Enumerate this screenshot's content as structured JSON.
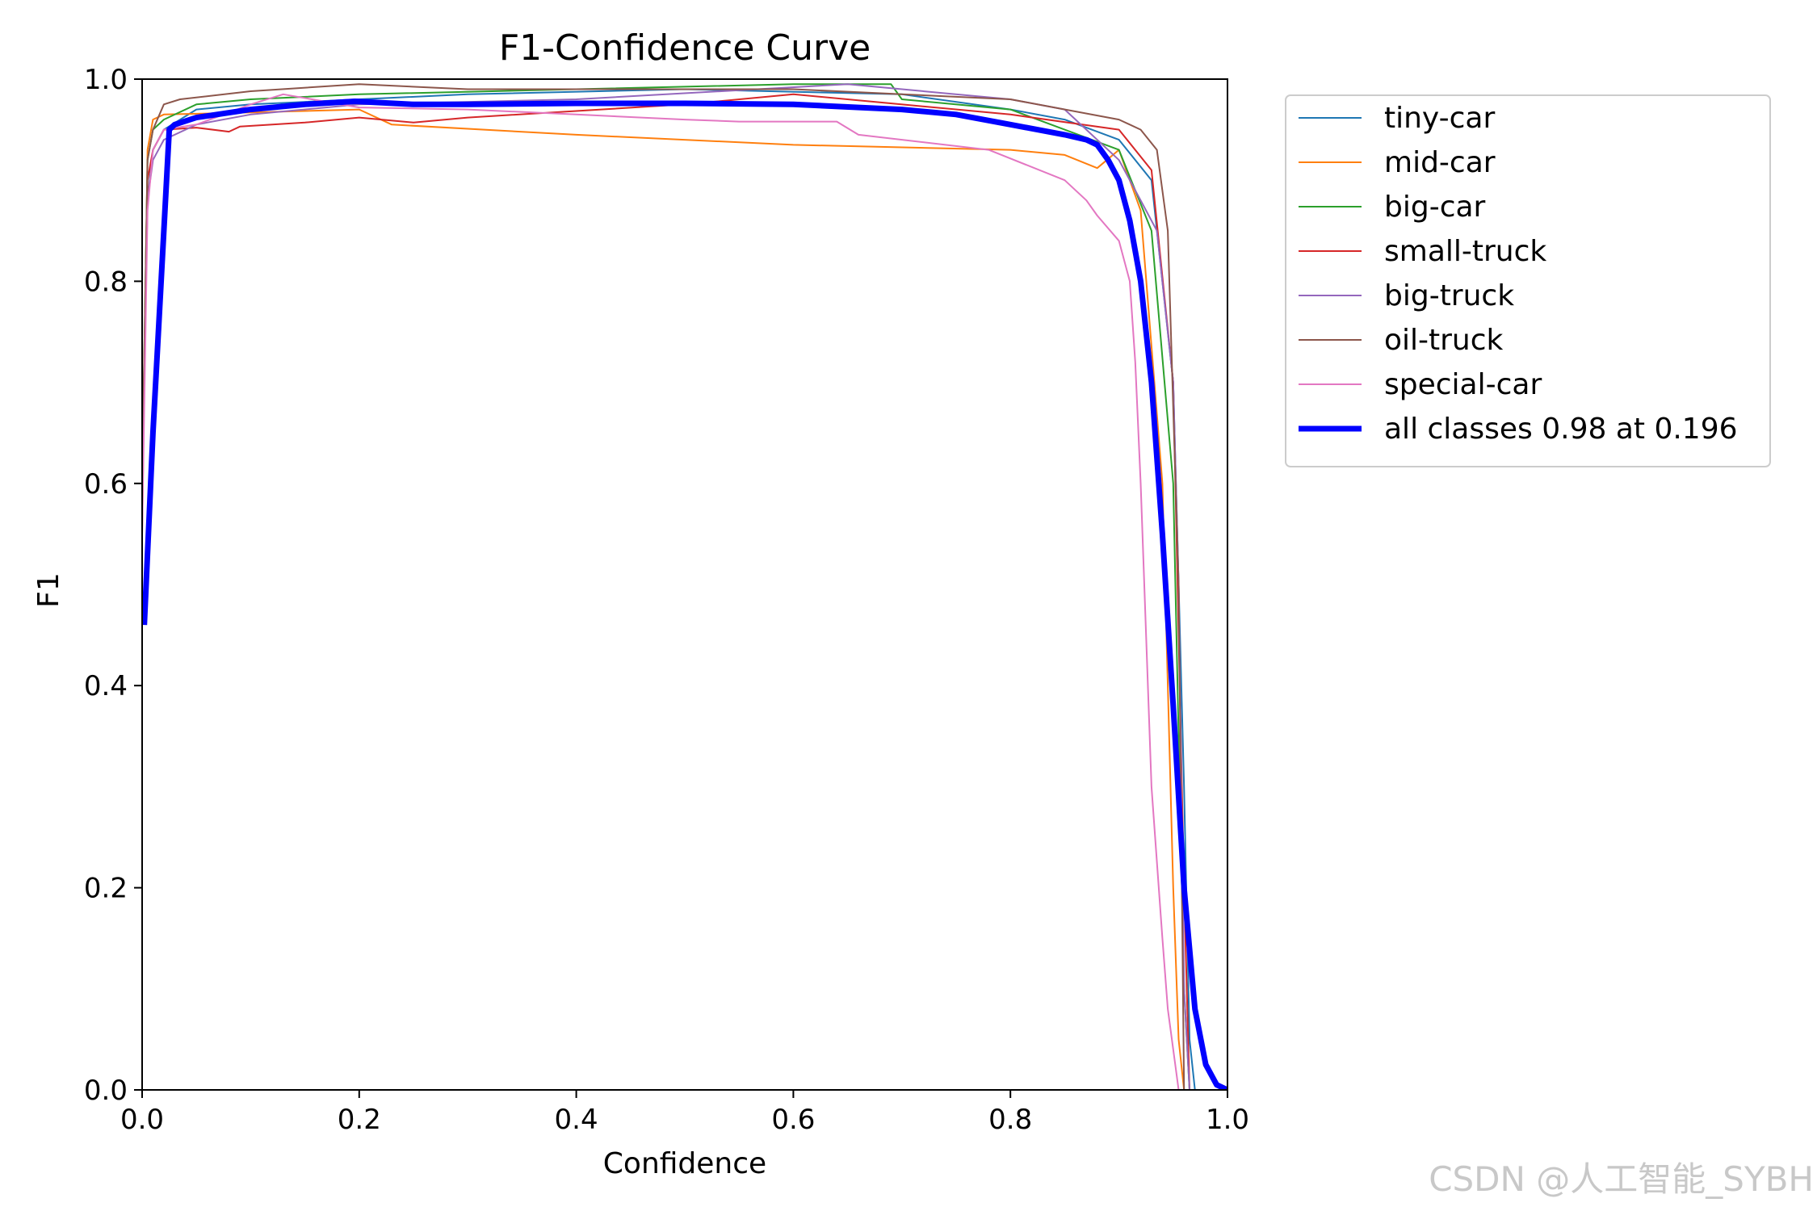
{
  "chart_data": {
    "type": "line",
    "title": "F1-Confidence Curve",
    "xlabel": "Confidence",
    "ylabel": "F1",
    "xlim": [
      0,
      1
    ],
    "ylim": [
      0,
      1
    ],
    "xticks": [
      "0.0",
      "0.2",
      "0.4",
      "0.6",
      "0.8",
      "1.0"
    ],
    "yticks": [
      "0.0",
      "0.2",
      "0.4",
      "0.6",
      "0.8",
      "1.0"
    ],
    "grid": false,
    "legend_position": "outside-top-right",
    "series": [
      {
        "name": "tiny-car",
        "color": "#1f77b4",
        "width": 2,
        "x": [
          0,
          0.005,
          0.01,
          0.02,
          0.05,
          0.1,
          0.2,
          0.3,
          0.5,
          0.7,
          0.8,
          0.85,
          0.9,
          0.93,
          0.95,
          0.96,
          0.965,
          0.97
        ],
        "y": [
          0.6,
          0.88,
          0.93,
          0.95,
          0.97,
          0.975,
          0.98,
          0.985,
          0.99,
          0.985,
          0.97,
          0.96,
          0.94,
          0.9,
          0.7,
          0.3,
          0.05,
          0
        ]
      },
      {
        "name": "mid-car",
        "color": "#ff7f0e",
        "width": 2,
        "x": [
          0,
          0.005,
          0.01,
          0.02,
          0.1,
          0.2,
          0.23,
          0.4,
          0.6,
          0.8,
          0.85,
          0.88,
          0.9,
          0.92,
          0.94,
          0.95,
          0.955,
          0.96
        ],
        "y": [
          0.55,
          0.93,
          0.96,
          0.965,
          0.967,
          0.97,
          0.955,
          0.945,
          0.935,
          0.93,
          0.925,
          0.912,
          0.93,
          0.87,
          0.6,
          0.2,
          0.05,
          0
        ]
      },
      {
        "name": "big-car",
        "color": "#2ca02c",
        "width": 2,
        "x": [
          0,
          0.005,
          0.01,
          0.02,
          0.05,
          0.1,
          0.2,
          0.4,
          0.6,
          0.69,
          0.7,
          0.8,
          0.9,
          0.93,
          0.95,
          0.96,
          0.965
        ],
        "y": [
          0.6,
          0.92,
          0.95,
          0.96,
          0.975,
          0.98,
          0.985,
          0.99,
          0.995,
          0.995,
          0.98,
          0.97,
          0.93,
          0.85,
          0.6,
          0.1,
          0
        ]
      },
      {
        "name": "small-truck",
        "color": "#d62728",
        "width": 2,
        "x": [
          0,
          0.005,
          0.01,
          0.02,
          0.05,
          0.08,
          0.09,
          0.15,
          0.2,
          0.25,
          0.3,
          0.5,
          0.6,
          0.8,
          0.9,
          0.93,
          0.95,
          0.96,
          0.965
        ],
        "y": [
          0.6,
          0.9,
          0.93,
          0.95,
          0.952,
          0.948,
          0.953,
          0.957,
          0.962,
          0.957,
          0.962,
          0.975,
          0.985,
          0.965,
          0.95,
          0.91,
          0.7,
          0.2,
          0
        ]
      },
      {
        "name": "big-truck",
        "color": "#9467bd",
        "width": 2,
        "x": [
          0,
          0.005,
          0.01,
          0.02,
          0.05,
          0.1,
          0.2,
          0.4,
          0.65,
          0.8,
          0.85,
          0.9,
          0.92,
          0.935,
          0.945,
          0.95,
          0.955,
          0.96,
          0.965
        ],
        "y": [
          0.6,
          0.88,
          0.92,
          0.94,
          0.955,
          0.965,
          0.975,
          0.98,
          0.995,
          0.98,
          0.97,
          0.92,
          0.88,
          0.85,
          0.75,
          0.7,
          0.5,
          0.1,
          0
        ]
      },
      {
        "name": "oil-truck",
        "color": "#8c564b",
        "width": 2,
        "x": [
          0,
          0.005,
          0.01,
          0.02,
          0.035,
          0.1,
          0.2,
          0.3,
          0.6,
          0.8,
          0.9,
          0.92,
          0.935,
          0.945,
          0.955,
          0.96
        ],
        "y": [
          0.6,
          0.92,
          0.95,
          0.975,
          0.98,
          0.988,
          0.995,
          0.99,
          0.99,
          0.98,
          0.96,
          0.95,
          0.93,
          0.85,
          0.5,
          0
        ]
      },
      {
        "name": "special-car",
        "color": "#e377c2",
        "width": 2,
        "x": [
          0,
          0.005,
          0.01,
          0.02,
          0.05,
          0.1,
          0.13,
          0.2,
          0.3,
          0.4,
          0.5,
          0.55,
          0.64,
          0.66,
          0.78,
          0.85,
          0.87,
          0.88,
          0.9,
          0.91,
          0.915,
          0.92,
          0.925,
          0.93,
          0.94,
          0.945,
          0.95,
          0.955
        ],
        "y": [
          0.55,
          0.87,
          0.93,
          0.95,
          0.955,
          0.975,
          0.985,
          0.972,
          0.97,
          0.965,
          0.96,
          0.958,
          0.958,
          0.945,
          0.93,
          0.9,
          0.88,
          0.865,
          0.84,
          0.8,
          0.72,
          0.6,
          0.45,
          0.3,
          0.15,
          0.08,
          0.04,
          0
        ]
      },
      {
        "name": "all classes 0.98 at 0.196",
        "color": "#0000ff",
        "width": 7,
        "x": [
          0.002,
          0.01,
          0.02,
          0.025,
          0.03,
          0.05,
          0.1,
          0.15,
          0.196,
          0.25,
          0.3,
          0.4,
          0.5,
          0.6,
          0.7,
          0.75,
          0.8,
          0.85,
          0.87,
          0.88,
          0.89,
          0.9,
          0.91,
          0.92,
          0.93,
          0.94,
          0.95,
          0.96,
          0.97,
          0.98,
          0.99,
          1.0
        ],
        "y": [
          0.46,
          0.65,
          0.85,
          0.95,
          0.955,
          0.962,
          0.97,
          0.975,
          0.978,
          0.975,
          0.975,
          0.976,
          0.976,
          0.975,
          0.97,
          0.965,
          0.955,
          0.945,
          0.94,
          0.935,
          0.92,
          0.9,
          0.86,
          0.8,
          0.7,
          0.55,
          0.38,
          0.2,
          0.08,
          0.025,
          0.005,
          0
        ]
      }
    ]
  },
  "watermark": "CSDN @人工智能_SYBH"
}
